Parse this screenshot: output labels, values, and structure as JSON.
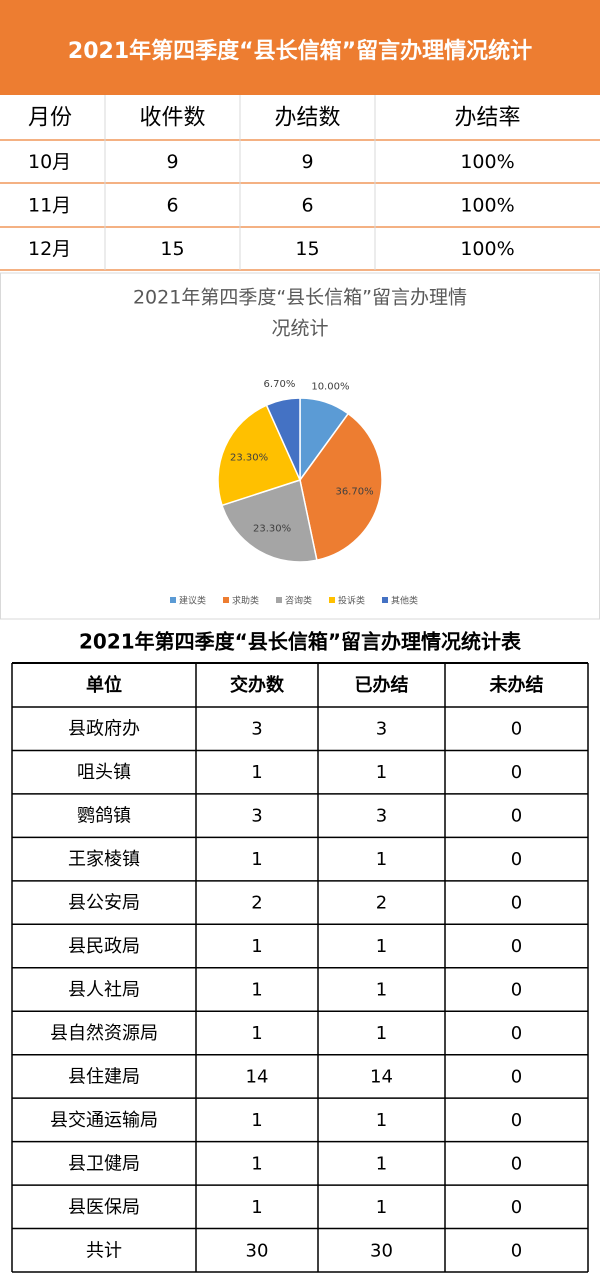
{
  "table1": {
    "title": "2021年第四季度“县长信箱”留言办理情况统计",
    "header": [
      "月份",
      "收件数",
      "办结数",
      "办结率"
    ],
    "rows": [
      [
        "10月",
        9,
        9,
        "100%"
      ],
      [
        "11月",
        6,
        6,
        "100%"
      ],
      [
        "12月",
        15,
        15,
        "100%"
      ]
    ]
  },
  "chart_data": {
    "type": "pie",
    "title": "2021年第四季度“县长信箱”留言办理情况统计",
    "categories": [
      "建议类",
      "求助类",
      "咨询类",
      "投诉类",
      "其他类"
    ],
    "values": [
      10.0,
      36.7,
      23.3,
      23.3,
      6.7
    ],
    "value_labels": [
      "10.00%",
      "36.70%",
      "23.30%",
      "23.30%",
      "6.70%"
    ],
    "colors": [
      "#5b9bd5",
      "#ed7d31",
      "#a5a5a5",
      "#ffc000",
      "#4472c4"
    ],
    "legend": "bottom"
  },
  "table2": {
    "title": "2021年第四季度“县长信箱”留言办理情况统计表",
    "header": [
      "单位",
      "交办数",
      "已办结",
      "未办结"
    ],
    "rows": [
      [
        "县政府办",
        3,
        3,
        0
      ],
      [
        "咀头镇",
        1,
        1,
        0
      ],
      [
        "鹦鸽镇",
        3,
        3,
        0
      ],
      [
        "王家棱镇",
        1,
        1,
        0
      ],
      [
        "县公安局",
        2,
        2,
        0
      ],
      [
        "县民政局",
        1,
        1,
        0
      ],
      [
        "县人社局",
        1,
        1,
        0
      ],
      [
        "县自然资源局",
        1,
        1,
        0
      ],
      [
        "县住建局",
        14,
        14,
        0
      ],
      [
        "县交通运输局",
        1,
        1,
        0
      ],
      [
        "县卫健局",
        1,
        1,
        0
      ],
      [
        "县医保局",
        1,
        1,
        0
      ],
      [
        "共计",
        30,
        30,
        0
      ]
    ]
  }
}
